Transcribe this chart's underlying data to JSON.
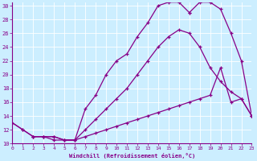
{
  "xlabel": "Windchill (Refroidissement éolien,°C)",
  "bg_color": "#cceeff",
  "line_color": "#880088",
  "grid_color": "#aaddcc",
  "xmin": 0,
  "xmax": 23,
  "ymin": 10,
  "ymax": 30,
  "yticks": [
    10,
    12,
    14,
    16,
    18,
    20,
    22,
    24,
    26,
    28,
    30
  ],
  "line1_x": [
    0,
    1,
    2,
    3,
    4,
    5,
    6,
    7,
    8,
    9,
    10,
    11,
    12,
    13,
    14,
    15,
    16,
    17
  ],
  "line1_y": [
    13,
    12,
    11,
    11,
    11,
    10.5,
    10.5,
    15,
    17,
    20,
    22,
    23,
    25.5,
    27.5,
    30,
    30.5,
    30.5,
    29
  ],
  "line2_x": [
    0,
    1,
    2,
    3,
    4,
    5,
    6,
    7,
    8,
    9,
    10,
    11,
    12,
    13,
    14,
    15,
    16,
    17,
    18,
    19,
    20,
    21,
    22,
    23
  ],
  "line2_y": [
    13,
    12,
    11,
    11,
    10.5,
    10.5,
    10.5,
    11,
    11.5,
    12,
    12.5,
    13,
    13.5,
    14,
    14.5,
    15,
    15.5,
    16,
    16.5,
    17,
    21,
    16,
    16.5,
    14
  ],
  "line3_x": [
    2,
    3,
    4,
    5,
    6,
    7,
    8,
    9,
    10,
    11,
    12,
    13,
    14,
    15,
    16,
    17,
    18,
    19,
    20,
    21,
    22,
    23
  ],
  "line3_y": [
    11,
    11,
    11,
    10.5,
    10.5,
    12,
    13.5,
    15,
    16.5,
    18,
    20,
    22,
    24,
    25.5,
    26.5,
    26,
    24,
    21,
    19,
    17.5,
    16.5,
    14
  ],
  "line4_x": [
    17,
    18,
    19,
    20,
    21,
    22,
    23
  ],
  "line4_y": [
    29,
    30.5,
    30.5,
    29.5,
    26,
    22,
    14
  ]
}
